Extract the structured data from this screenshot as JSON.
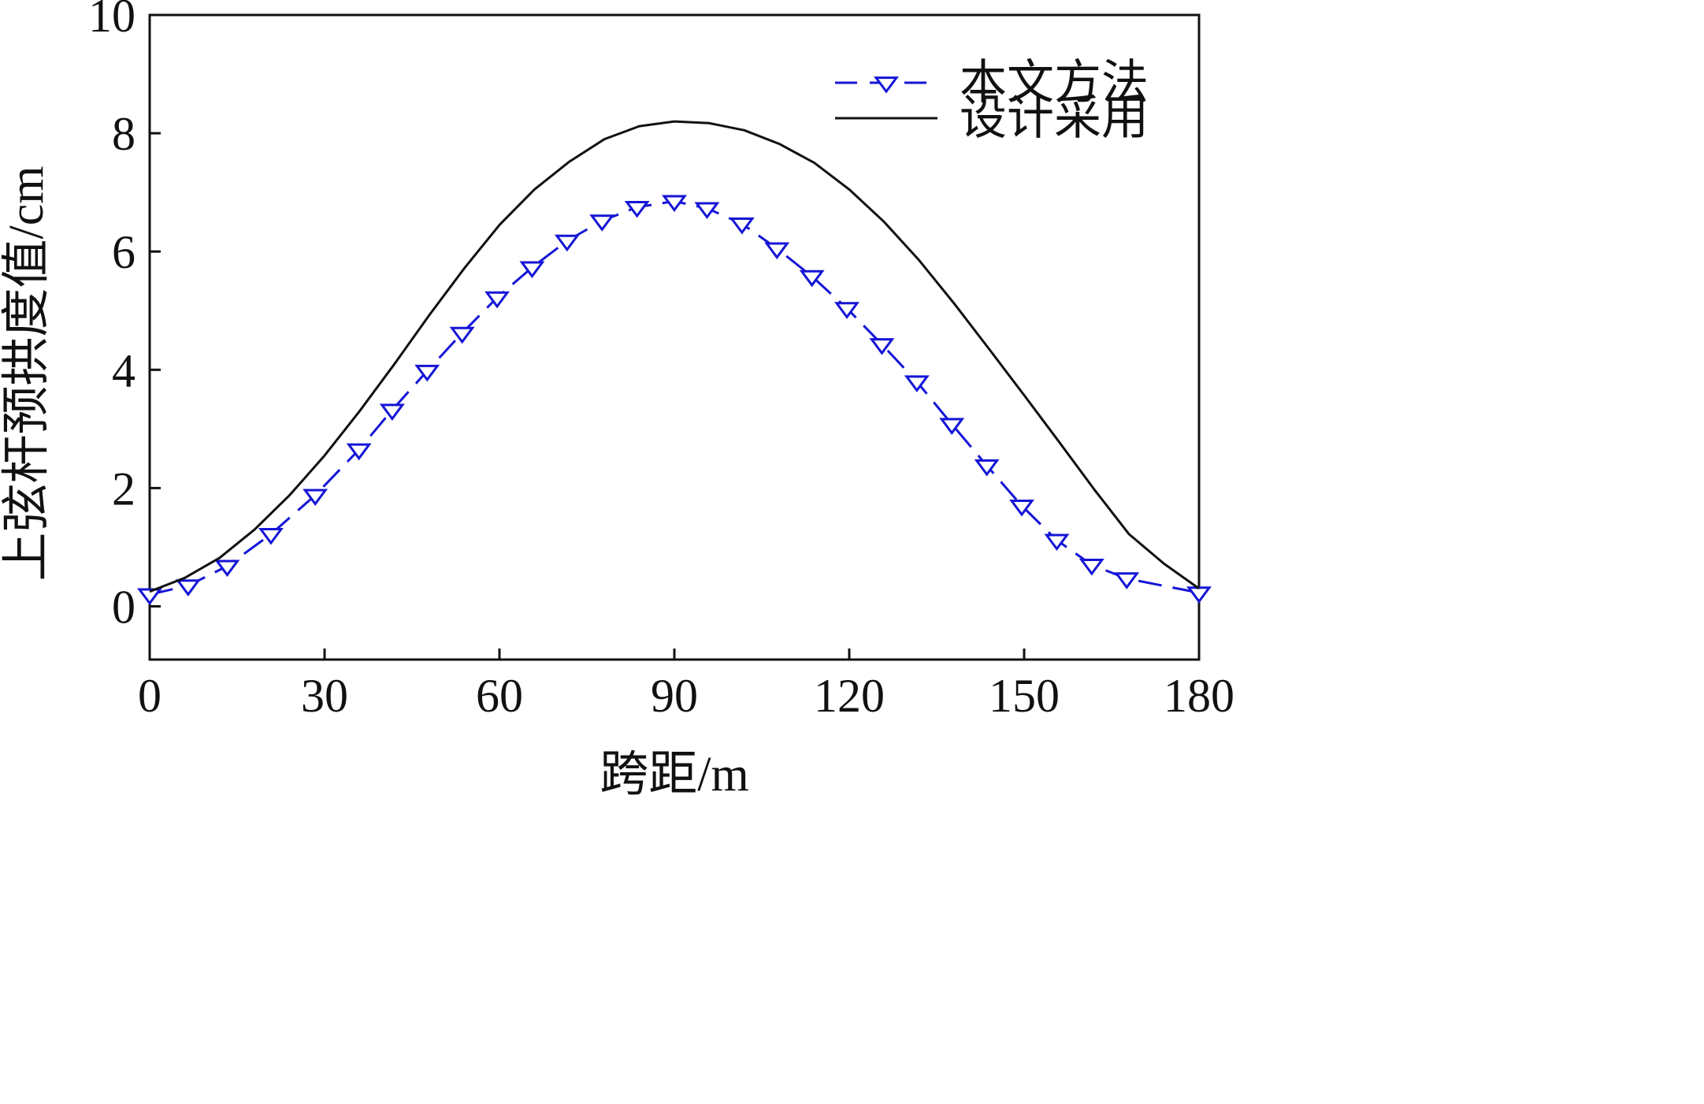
{
  "chart_data": {
    "type": "line",
    "xlabel": "跨距/m",
    "ylabel": "上弦杆预拱度值/cm",
    "xlim": [
      0,
      180
    ],
    "ylim": [
      -0.9,
      10
    ],
    "x_ticks": [
      "0",
      "30",
      "60",
      "90",
      "120",
      "150",
      "180"
    ],
    "y_ticks": [
      "0",
      "2",
      "4",
      "6",
      "8",
      "10"
    ],
    "grid": false,
    "legend_position": "top-right",
    "series": [
      {
        "name": "本文方法",
        "color": "#1515d6",
        "style": "dashed",
        "marker": "triangle-down",
        "x": [
          0,
          6.6,
          13.3,
          20.8,
          28.4,
          35.9,
          41.6,
          47.6,
          53.6,
          59.6,
          65.6,
          71.6,
          77.6,
          83.6,
          90,
          95.6,
          101.6,
          107.6,
          113.6,
          119.6,
          125.6,
          131.6,
          137.6,
          143.6,
          149.6,
          155.6,
          161.6,
          167.6,
          180
        ],
        "y": [
          0.2,
          0.35,
          0.68,
          1.22,
          1.88,
          2.65,
          3.32,
          3.98,
          4.62,
          5.22,
          5.73,
          6.18,
          6.52,
          6.75,
          6.85,
          6.73,
          6.47,
          6.05,
          5.58,
          5.04,
          4.43,
          3.8,
          3.08,
          2.38,
          1.7,
          1.12,
          0.7,
          0.47,
          0.23
        ]
      },
      {
        "name": "设计采用",
        "color": "#111111",
        "style": "solid",
        "marker": "none",
        "x": [
          0,
          6,
          12,
          18,
          24,
          30,
          36,
          42,
          48,
          54,
          60,
          66,
          72,
          78,
          84,
          90,
          96,
          102,
          108,
          114,
          120,
          126,
          132,
          138,
          144,
          150,
          156,
          162,
          168,
          174,
          180
        ],
        "y": [
          0.25,
          0.48,
          0.82,
          1.3,
          1.88,
          2.55,
          3.3,
          4.1,
          4.93,
          5.72,
          6.45,
          7.05,
          7.52,
          7.9,
          8.12,
          8.2,
          8.17,
          8.05,
          7.82,
          7.5,
          7.05,
          6.5,
          5.85,
          5.12,
          4.35,
          3.57,
          2.78,
          1.98,
          1.22,
          0.72,
          0.3
        ]
      }
    ]
  }
}
